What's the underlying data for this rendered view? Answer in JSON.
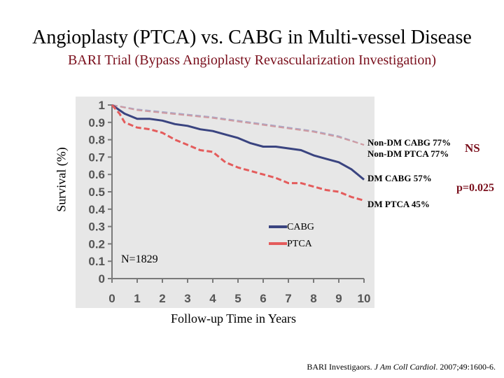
{
  "title": "Angioplasty (PTCA) vs. CABG in Multi-vessel Disease",
  "subtitle": "BARI Trial (Bypass Angioplasty Revascularization Investigation)",
  "citation": {
    "authors": "BARI Investigaors. ",
    "journal": "J Am Coll Cardiol",
    "rest": ". 2007;49:1600-6."
  },
  "colors": {
    "panel_bg": "#e7e7e7",
    "nondm_cabg": "#a8a8c8",
    "nondm_ptca": "#d09aa0",
    "dm_cabg": "#3a4480",
    "dm_ptca": "#e45c5c",
    "accent_text": "#7a0f1c"
  },
  "chart_data": {
    "type": "line",
    "title": "",
    "xlabel": "Follow-up Time in Years",
    "ylabel": "Survival (%)",
    "x_ticks": [
      "0",
      "1",
      "2",
      "3",
      "4",
      "5",
      "6",
      "7",
      "8",
      "9",
      "10"
    ],
    "y_ticks": [
      "0",
      "0.1",
      "0.2",
      "0.3",
      "0.4",
      "0.5",
      "0.6",
      "0.7",
      "0.8",
      "0.9",
      "1"
    ],
    "xlim": [
      0,
      10
    ],
    "ylim": [
      0,
      1
    ],
    "grid": false,
    "legend": {
      "position": "center",
      "entries": [
        {
          "label": "CABG",
          "color": "#3a4480"
        },
        {
          "label": "PTCA",
          "color": "#e45c5c"
        }
      ]
    },
    "series": [
      {
        "id": "nondm_cabg",
        "style": "dashed",
        "x": [
          0,
          1,
          2,
          3,
          4,
          5,
          6,
          7,
          8,
          9,
          10
        ],
        "y": [
          1.0,
          0.975,
          0.96,
          0.945,
          0.93,
          0.91,
          0.89,
          0.87,
          0.85,
          0.82,
          0.77
        ]
      },
      {
        "id": "nondm_ptca",
        "style": "dashed",
        "x": [
          0,
          1,
          2,
          3,
          4,
          5,
          6,
          7,
          8,
          9,
          10
        ],
        "y": [
          1.0,
          0.97,
          0.955,
          0.94,
          0.925,
          0.905,
          0.885,
          0.865,
          0.845,
          0.815,
          0.77
        ]
      },
      {
        "id": "dm_cabg",
        "style": "solid",
        "x": [
          0,
          0.5,
          1,
          1.5,
          2,
          2.5,
          3,
          3.5,
          4,
          4.5,
          5,
          5.5,
          6,
          6.5,
          7,
          7.5,
          8,
          8.5,
          9,
          9.5,
          10
        ],
        "y": [
          1.0,
          0.95,
          0.92,
          0.92,
          0.91,
          0.89,
          0.88,
          0.86,
          0.85,
          0.83,
          0.81,
          0.78,
          0.76,
          0.76,
          0.75,
          0.74,
          0.71,
          0.69,
          0.67,
          0.63,
          0.57
        ]
      },
      {
        "id": "dm_ptca",
        "style": "dashed",
        "x": [
          0,
          0.3,
          0.5,
          1,
          1.5,
          2,
          2.5,
          3,
          3.5,
          4,
          4.5,
          5,
          5.5,
          6,
          6.5,
          7,
          7.5,
          8,
          8.5,
          9,
          9.5,
          10
        ],
        "y": [
          1.0,
          0.95,
          0.9,
          0.87,
          0.86,
          0.84,
          0.8,
          0.77,
          0.74,
          0.73,
          0.67,
          0.64,
          0.62,
          0.6,
          0.58,
          0.55,
          0.55,
          0.53,
          0.51,
          0.5,
          0.47,
          0.45
        ]
      }
    ],
    "annotations": {
      "nondm_cabg": "Non-DM CABG 77%",
      "nondm_ptca": "Non-DM PTCA 77%",
      "dm_cabg": "DM CABG 57%",
      "dm_ptca": "DM PTCA 45%",
      "ns": "NS",
      "p_value": "p=0.025",
      "n": "N=1829"
    }
  }
}
